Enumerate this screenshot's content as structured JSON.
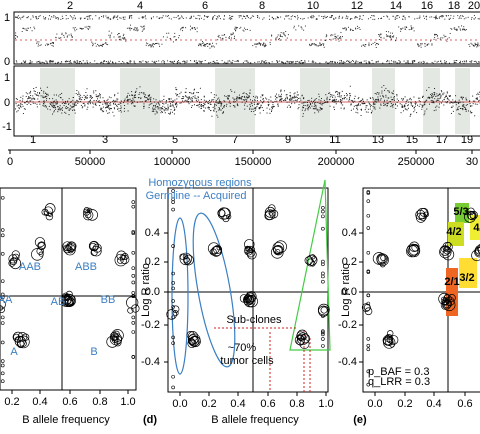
{
  "top_panel": {
    "chrom_labels_top": [
      "2",
      "4",
      "6",
      "8",
      "10",
      "12",
      "14",
      "16",
      "18",
      "20"
    ],
    "chrom_labels_bottom": [
      "1",
      "3",
      "5",
      "7",
      "9",
      "11",
      "13",
      "15",
      "17",
      "19"
    ],
    "baf_axis_labels": [
      "1",
      "0"
    ],
    "lrr_axis_labels": [
      "1",
      "0",
      "-1"
    ],
    "x_ticks": [
      "0",
      "50000",
      "100000",
      "150000",
      "200000",
      "250000",
      "30"
    ]
  },
  "panel_c": {
    "x_ticks": [
      "0.2",
      "0.4",
      "0.6",
      "0.8",
      "1.0"
    ],
    "x_label": "B allele frequency",
    "genotypes": [
      "AAB",
      "ABB",
      "AA",
      "AB",
      "BB",
      "A",
      "B"
    ]
  },
  "panel_d": {
    "label": "(d)",
    "x_ticks": [
      "0.0",
      "0.2",
      "0.4",
      "0.6",
      "0.8",
      "1.0"
    ],
    "y_ticks": [
      "0.4",
      "0.2",
      "0.0",
      "-0.2",
      "-0.4"
    ],
    "x_label": "B allele frequency",
    "y_label": "Log R ratio",
    "annotations": [
      "Homozygous regions",
      "Germline -- Acquired",
      "Sub-clones",
      "~70%",
      "tumor cells"
    ]
  },
  "panel_e": {
    "label": "(e)",
    "x_ticks": [
      "0.0",
      "0.2",
      "0.4",
      "0.6"
    ],
    "y_ticks": [
      "0.4",
      "0.2",
      "0.0",
      "-0.2",
      "-0.4"
    ],
    "y_label": "Log R ratio",
    "state_labels": [
      "5/3",
      "4/2",
      "4/",
      "3/2",
      "2/1"
    ],
    "params": [
      "p_BAF = 0.3",
      "q_LRR = 0.3"
    ]
  }
}
